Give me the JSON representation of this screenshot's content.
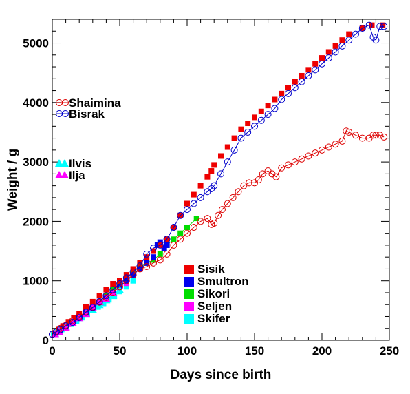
{
  "chart_data": {
    "type": "scatter",
    "title": "",
    "xlabel": "Days since birth",
    "ylabel": "Weight / g",
    "xlim": [
      0,
      250
    ],
    "ylim": [
      0,
      5400
    ],
    "x_ticks": [
      0,
      50,
      100,
      150,
      200,
      250
    ],
    "y_ticks": [
      0,
      1000,
      2000,
      3000,
      4000,
      5000
    ],
    "x_tick_labels": [
      "0",
      "50",
      "100",
      "150",
      "200",
      "250"
    ],
    "y_tick_labels": [
      "0",
      "1000",
      "2000",
      "3000",
      "4000",
      "5000"
    ],
    "grid": false,
    "legends": {
      "left_upper": [
        "Shaimina",
        "Bisrak"
      ],
      "left_lower": [
        "Ilvis",
        "Ilja"
      ],
      "bottom_center": [
        "Sisik",
        "Smultron",
        "Sikori",
        "Seljen",
        "Skifer"
      ]
    },
    "series": [
      {
        "name": "Shaimina",
        "color": "#dd0000",
        "marker": "open-circle",
        "line": true,
        "x": [
          0,
          3,
          6,
          10,
          15,
          20,
          25,
          30,
          35,
          40,
          45,
          50,
          55,
          60,
          65,
          70,
          75,
          80,
          85,
          90,
          95,
          100,
          105,
          110,
          115,
          118,
          120,
          123,
          126,
          130,
          134,
          138,
          142,
          146,
          150,
          153,
          156,
          160,
          163,
          166,
          170,
          175,
          180,
          185,
          190,
          195,
          200,
          205,
          210,
          215,
          218,
          220,
          225,
          230,
          235,
          238,
          240,
          243,
          246
        ],
        "y": [
          100,
          150,
          200,
          250,
          330,
          400,
          480,
          560,
          640,
          720,
          800,
          900,
          1000,
          1100,
          1200,
          1240,
          1300,
          1350,
          1450,
          1600,
          1700,
          1800,
          1900,
          2000,
          2050,
          1950,
          1970,
          2100,
          2200,
          2300,
          2400,
          2500,
          2600,
          2650,
          2650,
          2700,
          2800,
          2850,
          2800,
          2750,
          2900,
          2950,
          3000,
          3050,
          3100,
          3150,
          3200,
          3250,
          3300,
          3350,
          3520,
          3500,
          3450,
          3400,
          3400,
          3450,
          3450,
          3450,
          3420
        ]
      },
      {
        "name": "Bisrak",
        "color": "#0000cc",
        "marker": "open-circle",
        "line": true,
        "x": [
          0,
          3,
          6,
          10,
          15,
          20,
          25,
          30,
          35,
          40,
          45,
          50,
          55,
          60,
          65,
          70,
          75,
          80,
          85,
          90,
          95,
          100,
          105,
          110,
          115,
          118,
          120,
          125,
          130,
          135,
          140,
          145,
          150,
          155,
          160,
          165,
          170,
          175,
          180,
          185,
          190,
          195,
          200,
          205,
          210,
          215,
          220,
          225,
          230,
          235,
          238,
          240,
          243,
          246
        ],
        "y": [
          100,
          140,
          180,
          240,
          300,
          380,
          470,
          550,
          650,
          750,
          850,
          950,
          1050,
          1150,
          1250,
          1450,
          1550,
          1600,
          1700,
          1900,
          2100,
          2200,
          2300,
          2400,
          2500,
          2550,
          2600,
          2800,
          3000,
          3200,
          3400,
          3500,
          3600,
          3700,
          3800,
          3900,
          4050,
          4150,
          4250,
          4350,
          4450,
          4550,
          4650,
          4750,
          4850,
          4950,
          5050,
          5150,
          5250,
          5300,
          5100,
          5050,
          5280,
          5280
        ]
      },
      {
        "name": "Sisik",
        "color": "#ee0000",
        "marker": "filled-square",
        "line": false,
        "x": [
          2,
          5,
          8,
          12,
          16,
          20,
          25,
          30,
          35,
          40,
          45,
          50,
          55,
          60,
          65,
          70,
          75,
          80,
          85,
          90,
          95,
          100,
          105,
          110,
          115,
          118,
          120,
          125,
          130,
          135,
          140,
          145,
          150,
          155,
          160,
          165,
          170,
          175,
          180,
          185,
          190,
          195,
          200,
          205,
          210,
          215,
          220,
          230,
          237,
          245
        ],
        "y": [
          120,
          180,
          240,
          310,
          380,
          450,
          560,
          650,
          750,
          850,
          950,
          1000,
          1100,
          1200,
          1300,
          1400,
          1500,
          1600,
          1700,
          1900,
          2100,
          2300,
          2450,
          2600,
          2750,
          2850,
          2950,
          3100,
          3250,
          3400,
          3550,
          3650,
          3750,
          3850,
          3950,
          4050,
          4150,
          4250,
          4350,
          4450,
          4550,
          4650,
          4750,
          4850,
          4950,
          5050,
          5150,
          5250,
          5300,
          5300
        ]
      },
      {
        "name": "Smultron",
        "color": "#0000ee",
        "marker": "filled-square",
        "line": false,
        "x": [
          2,
          6,
          10,
          15,
          20,
          25,
          30,
          35,
          40,
          45,
          50,
          55,
          60,
          65,
          70,
          75,
          78,
          80,
          83,
          85
        ],
        "y": [
          110,
          170,
          230,
          300,
          380,
          460,
          540,
          620,
          700,
          800,
          900,
          1000,
          1100,
          1200,
          1300,
          1400,
          1600,
          1650,
          1550,
          1600
        ]
      },
      {
        "name": "Sikori",
        "color": "#00dd00",
        "marker": "filled-square",
        "line": true,
        "x": [
          2,
          6,
          10,
          15,
          20,
          25,
          30,
          35,
          40,
          45,
          50,
          55,
          60,
          65,
          70,
          75,
          80,
          85,
          90,
          95,
          100,
          107
        ],
        "y": [
          120,
          180,
          240,
          310,
          390,
          470,
          560,
          650,
          750,
          850,
          950,
          1050,
          1150,
          1250,
          1300,
          1350,
          1450,
          1600,
          1700,
          1800,
          1900,
          2050
        ]
      },
      {
        "name": "Seljen",
        "color": "#ff00ff",
        "marker": "filled-square",
        "line": false,
        "x": [
          2,
          5,
          8,
          12,
          16,
          20,
          25,
          30,
          35,
          40,
          45,
          50,
          55
        ],
        "y": [
          110,
          160,
          210,
          270,
          340,
          410,
          500,
          580,
          650,
          720,
          800,
          880,
          960
        ]
      },
      {
        "name": "Skifer",
        "color": "#00ffff",
        "marker": "filled-square",
        "line": false,
        "x": [
          1,
          4,
          7,
          10,
          14,
          18,
          22,
          26,
          30,
          34,
          38,
          42,
          46,
          50,
          55,
          60
        ],
        "y": [
          100,
          140,
          180,
          220,
          270,
          320,
          380,
          440,
          500,
          560,
          620,
          680,
          740,
          820,
          900,
          1000
        ]
      },
      {
        "name": "Ilvis",
        "color": "#00ffff",
        "marker": "filled-triangle",
        "line": false,
        "x": [
          2,
          5,
          10,
          15,
          20,
          25,
          30,
          35,
          40,
          45,
          50
        ],
        "y": [
          120,
          160,
          230,
          300,
          380,
          450,
          520,
          600,
          680,
          760,
          850
        ]
      },
      {
        "name": "Ilja",
        "color": "#ff00ff",
        "marker": "filled-triangle",
        "line": false,
        "x": [
          2,
          5,
          10,
          15,
          20,
          25,
          30,
          35,
          40,
          45
        ],
        "y": [
          110,
          150,
          220,
          300,
          380,
          450,
          550,
          650,
          700,
          800
        ]
      }
    ]
  }
}
